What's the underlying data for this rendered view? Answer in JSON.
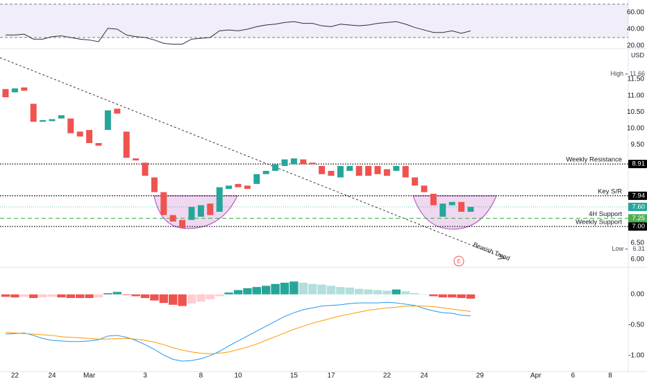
{
  "chart_data": [
    {
      "type": "candlestick",
      "currency": "USD",
      "categories": [
        null,
        "22",
        null,
        null,
        null,
        "24",
        null,
        null,
        null,
        "Mar",
        null,
        null,
        null,
        null,
        null,
        "3",
        null,
        null,
        null,
        null,
        null,
        "8",
        null,
        null,
        null,
        "10",
        null,
        null,
        null,
        null,
        null,
        "15",
        null,
        null,
        null,
        "17",
        null,
        null,
        null,
        null,
        null,
        "22",
        null,
        null,
        null,
        "24",
        null,
        null,
        null,
        null,
        null,
        "29",
        null,
        null,
        null,
        null,
        null,
        "Apr",
        null,
        null,
        null,
        "6",
        null,
        null,
        null,
        "8",
        null
      ],
      "open": [
        11.2,
        11.1,
        11.25,
        10.75,
        10.2,
        10.22,
        10.3,
        10.3,
        9.9,
        9.95,
        9.55,
        9.95,
        10.6,
        9.9,
        9.08,
        8.95,
        8.5,
        8.05,
        7.35,
        7.2,
        7.2,
        7.3,
        7.7,
        7.45,
        8.15,
        8.3,
        8.25,
        8.3,
        8.6,
        8.7,
        8.85,
        8.9,
        9.05,
        8.95,
        8.85,
        8.7,
        8.5,
        8.7,
        8.85,
        8.85,
        8.85,
        8.75,
        8.7,
        8.85,
        8.5,
        8.25,
        8.0,
        7.3,
        7.65,
        7.75,
        7.45,
        null,
        null,
        null,
        null,
        null,
        null,
        null,
        null,
        null,
        null,
        null,
        null,
        null,
        null,
        null,
        null
      ],
      "high": {
        "name": "High",
        "value": 11.66
      },
      "low": {
        "name": "Low",
        "value": 6.31
      },
      "close": [
        10.95,
        11.22,
        11.15,
        10.2,
        10.25,
        10.28,
        10.4,
        9.85,
        9.75,
        9.55,
        9.47,
        10.55,
        10.45,
        9.1,
        9.02,
        8.55,
        8.05,
        7.35,
        7.15,
        6.95,
        7.6,
        7.65,
        7.35,
        8.2,
        8.25,
        8.2,
        8.15,
        8.6,
        8.7,
        8.9,
        9.05,
        9.08,
        8.9,
        8.9,
        8.6,
        8.55,
        8.85,
        8.85,
        8.55,
        8.55,
        8.6,
        8.55,
        8.85,
        8.5,
        8.25,
        8.05,
        7.65,
        7.7,
        7.75,
        7.45,
        7.6,
        null,
        null,
        null,
        null,
        null,
        null,
        null,
        null,
        null,
        null,
        null,
        null,
        null,
        null,
        null,
        null
      ],
      "up_color": "#26a69a",
      "down_color": "#ef5350",
      "ylim": [
        5.75,
        12.33
      ],
      "yticks": [
        {
          "value": 6,
          "label": "6.00"
        },
        {
          "value": 6.5,
          "label": "6.50"
        },
        {
          "value": 9.5,
          "label": "9.50"
        },
        {
          "value": 10,
          "label": "10.00"
        },
        {
          "value": 10.5,
          "label": "10.50"
        },
        {
          "value": 11,
          "label": "11.00"
        },
        {
          "value": 11.5,
          "label": "11.50"
        }
      ],
      "grid": false,
      "levels": [
        {
          "name": "Weekly Resistance",
          "value": 8.91,
          "color": "#000000",
          "style": "dotted"
        },
        {
          "name": "Key S/R",
          "value": 7.94,
          "color": "#000000",
          "style": "dotted"
        },
        {
          "name": "4H Support",
          "value": 7.25,
          "color": "#4caf50",
          "style": "dashed"
        },
        {
          "name": "Weekly Support",
          "value": 7,
          "value_label": "7.00",
          "color": "#000000",
          "style": "dotted"
        }
      ],
      "last_price": {
        "value": 7.6,
        "value_label": "7.60",
        "color": "#26a69a"
      },
      "trend_label": "Bearish Trend",
      "earnings_marker": "E"
    },
    {
      "type": "line",
      "color": "#2a2e39",
      "band_color": "#7e57c2",
      "values": [
        33,
        33,
        34,
        28,
        28,
        31,
        32,
        30,
        28,
        27,
        25,
        41,
        40,
        33,
        31,
        30,
        27,
        23,
        22,
        22,
        28,
        29,
        30,
        38,
        39,
        38,
        40,
        43,
        45,
        46,
        48,
        49,
        47,
        47,
        44,
        43,
        46,
        45,
        44,
        45,
        47,
        48,
        49,
        46,
        42,
        39,
        36,
        36,
        38,
        35,
        38
      ],
      "bands": [
        30,
        70
      ],
      "ylim": [
        18.3,
        75
      ],
      "yticks": [
        {
          "value": 20,
          "label": "20.00"
        },
        {
          "value": 40,
          "label": "40.00"
        },
        {
          "value": 60,
          "label": "60.00"
        }
      ]
    },
    {
      "type": "bar",
      "values": [
        -0.04,
        -0.05,
        -0.04,
        -0.06,
        -0.05,
        -0.04,
        -0.05,
        -0.06,
        -0.06,
        -0.06,
        -0.05,
        0.02,
        0.04,
        -0.01,
        -0.03,
        -0.06,
        -0.1,
        -0.14,
        -0.17,
        -0.19,
        -0.15,
        -0.12,
        -0.08,
        -0.03,
        0.03,
        0.07,
        0.1,
        0.12,
        0.14,
        0.17,
        0.19,
        0.21,
        0.19,
        0.17,
        0.16,
        0.14,
        0.12,
        0.11,
        0.09,
        0.08,
        0.07,
        0.06,
        0.08,
        0.05,
        0.02,
        0,
        -0.03,
        -0.05,
        -0.05,
        -0.06,
        -0.07
      ],
      "colors": {
        "up_rising": "#26a69a",
        "up_falling": "#b2dfdb",
        "down_falling": "#ef5350",
        "down_rising": "#ffcdd2"
      },
      "lines": [
        {
          "color": "#2196f3",
          "values": [
            -0.65,
            -0.64,
            -0.63,
            -0.67,
            -0.72,
            -0.75,
            -0.76,
            -0.77,
            -0.77,
            -0.76,
            -0.74,
            -0.68,
            -0.67,
            -0.7,
            -0.75,
            -0.82,
            -0.9,
            -0.99,
            -1.06,
            -1.09,
            -1.08,
            -1.05,
            -1.0,
            -0.93,
            -0.84,
            -0.76,
            -0.68,
            -0.6,
            -0.52,
            -0.44,
            -0.36,
            -0.3,
            -0.25,
            -0.22,
            -0.19,
            -0.18,
            -0.17,
            -0.15,
            -0.14,
            -0.14,
            -0.14,
            -0.13,
            -0.14,
            -0.16,
            -0.18,
            -0.23,
            -0.27,
            -0.3,
            -0.31,
            -0.34,
            -0.35
          ]
        },
        {
          "color": "#ff9800",
          "values": [
            -0.62,
            -0.63,
            -0.64,
            -0.65,
            -0.66,
            -0.67,
            -0.69,
            -0.7,
            -0.71,
            -0.72,
            -0.73,
            -0.73,
            -0.72,
            -0.72,
            -0.73,
            -0.75,
            -0.78,
            -0.82,
            -0.87,
            -0.91,
            -0.94,
            -0.96,
            -0.97,
            -0.96,
            -0.94,
            -0.9,
            -0.86,
            -0.81,
            -0.75,
            -0.69,
            -0.63,
            -0.57,
            -0.52,
            -0.47,
            -0.43,
            -0.39,
            -0.35,
            -0.32,
            -0.29,
            -0.26,
            -0.24,
            -0.22,
            -0.21,
            -0.19,
            -0.19,
            -0.19,
            -0.2,
            -0.22,
            -0.24,
            -0.26,
            -0.28
          ]
        }
      ],
      "ylim": [
        -1.26,
        0.44
      ],
      "yticks": [
        {
          "value": 0,
          "label": "0.00"
        },
        {
          "value": -0.5,
          "label": "-0.50"
        },
        {
          "value": -1,
          "label": "-1.00"
        }
      ]
    }
  ]
}
